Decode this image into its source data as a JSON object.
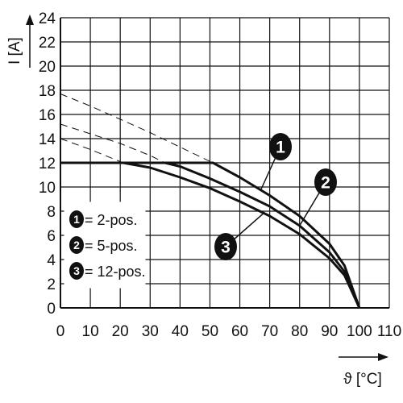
{
  "chart_data": {
    "type": "line",
    "title": "",
    "xlabel": "ϑ [°C]",
    "ylabel": "I [A]",
    "xlim": [
      0,
      110
    ],
    "ylim": [
      0,
      24
    ],
    "x_ticks": [
      0,
      10,
      20,
      30,
      40,
      50,
      60,
      70,
      80,
      90,
      100,
      110
    ],
    "y_ticks": [
      0,
      2,
      4,
      6,
      8,
      10,
      12,
      14,
      16,
      18,
      20,
      22,
      24
    ],
    "grid": true,
    "legend_position": "bottom-left",
    "series": [
      {
        "name": "2-pos.",
        "marker": "1",
        "current_limit": 12,
        "points": [
          [
            0,
            12
          ],
          [
            51,
            12
          ],
          [
            60,
            10.8
          ],
          [
            70,
            9.3
          ],
          [
            80,
            7.6
          ],
          [
            90,
            5.3
          ],
          [
            95,
            3.5
          ],
          [
            100,
            0
          ]
        ],
        "derating_points": [
          [
            0,
            17.7
          ],
          [
            10,
            16.7
          ],
          [
            20,
            15.6
          ],
          [
            30,
            14.5
          ],
          [
            40,
            13.3
          ],
          [
            51,
            12
          ]
        ]
      },
      {
        "name": "5-pos.",
        "marker": "2",
        "current_limit": 12,
        "points": [
          [
            0,
            12
          ],
          [
            35,
            12
          ],
          [
            40,
            11.7
          ],
          [
            50,
            10.7
          ],
          [
            60,
            9.6
          ],
          [
            70,
            8.4
          ],
          [
            80,
            6.8
          ],
          [
            90,
            4.6
          ],
          [
            95,
            3
          ],
          [
            100,
            0
          ]
        ],
        "derating_points": [
          [
            0,
            15.2
          ],
          [
            10,
            14.4
          ],
          [
            20,
            13.6
          ],
          [
            30,
            12.6
          ],
          [
            35,
            12
          ]
        ]
      },
      {
        "name": "12-pos.",
        "marker": "3",
        "current_limit": 12,
        "points": [
          [
            0,
            12
          ],
          [
            21,
            12
          ],
          [
            30,
            11.6
          ],
          [
            40,
            10.8
          ],
          [
            50,
            9.9
          ],
          [
            60,
            8.8
          ],
          [
            70,
            7.6
          ],
          [
            80,
            6.1
          ],
          [
            90,
            4.1
          ],
          [
            95,
            2.7
          ],
          [
            100,
            0
          ]
        ],
        "derating_points": [
          [
            0,
            14
          ],
          [
            10,
            13.1
          ],
          [
            21,
            12
          ]
        ]
      }
    ],
    "legend": [
      {
        "marker": "1",
        "label": "= 2-pos."
      },
      {
        "marker": "2",
        "label": "= 5-pos."
      },
      {
        "marker": "3",
        "label": "= 12-pos."
      }
    ],
    "callouts": [
      {
        "marker": "1",
        "series_index": 0,
        "anchor_x": 67
      },
      {
        "marker": "2",
        "series_index": 1,
        "anchor_x": 80
      },
      {
        "marker": "3",
        "series_index": 2,
        "anchor_x": 68
      }
    ],
    "colors": {
      "line": "#111111",
      "grid": "#111111",
      "marker_fill": "#111111",
      "marker_text": "#ffffff"
    }
  }
}
